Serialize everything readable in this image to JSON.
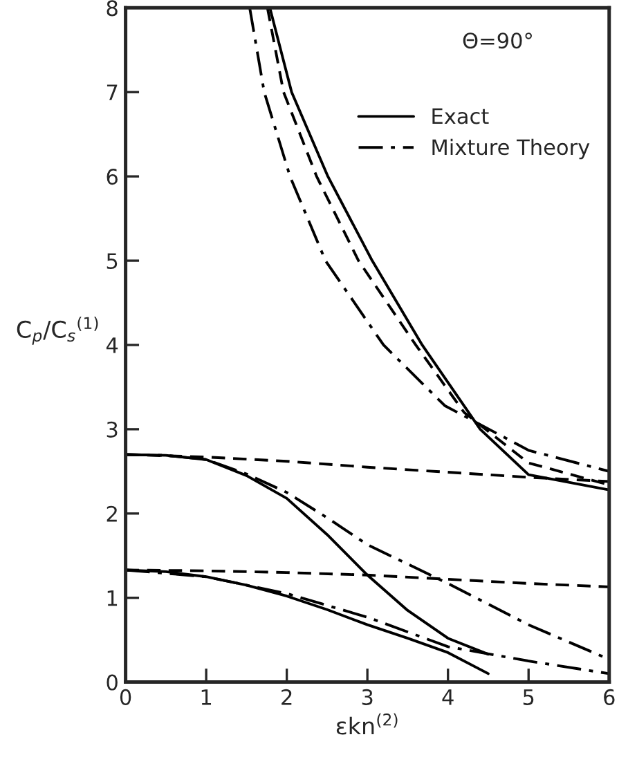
{
  "chart_data": {
    "type": "line",
    "xlabel": "εkn$^{(2)}$",
    "ylabel": "C$_{p}$/C$_{s}$$^{(1)}$",
    "annotations": [
      "Θ=90°"
    ],
    "xlim": [
      0,
      6
    ],
    "ylim": [
      0,
      8
    ],
    "xticks": [
      0,
      1,
      2,
      3,
      4,
      5,
      6
    ],
    "yticks": [
      0,
      1,
      2,
      3,
      4,
      5,
      6,
      7,
      8
    ],
    "grid": false,
    "legend": "top right",
    "marker": "none",
    "series": [
      {
        "name": "Exact",
        "color": "#000000",
        "line_style": "solid",
        "x": [
          1.79,
          2.06,
          2.51,
          3.06,
          3.68,
          4.4,
          5.0,
          6.0
        ],
        "values": [
          8,
          7,
          6,
          5,
          4,
          3,
          2.46,
          2.28
        ]
      },
      {
        "name": "Mixture Theory",
        "color": "#000000",
        "line_style": "dashdot",
        "x": [
          1.54,
          1.72,
          2.04,
          2.48,
          3.2,
          3.96,
          5.0,
          6.0
        ],
        "values": [
          8,
          7,
          6,
          5,
          4,
          3.28,
          2.75,
          2.5
        ]
      },
      {
        "color": "#000000",
        "line_style": "dashed",
        "x": [
          1.76,
          1.96,
          2.37,
          2.89,
          3.6,
          4.2,
          5.0,
          6.0
        ],
        "values": [
          8,
          7,
          6,
          5,
          4,
          3.2,
          2.6,
          2.34
        ]
      },
      {
        "color": "#000000",
        "line_style": "solid",
        "x": [
          0,
          0.5,
          1,
          1.5,
          2,
          2.5,
          3,
          3.5,
          4,
          4.5
        ],
        "values": [
          2.7,
          2.69,
          2.64,
          2.45,
          2.18,
          1.75,
          1.27,
          0.85,
          0.52,
          0.33
        ]
      },
      {
        "color": "#000000",
        "line_style": "dashdot",
        "x": [
          0,
          0.5,
          1,
          1.5,
          2,
          2.5,
          3,
          4,
          5,
          6
        ],
        "values": [
          2.7,
          2.69,
          2.64,
          2.47,
          2.25,
          1.95,
          1.63,
          1.17,
          0.68,
          0.27
        ]
      },
      {
        "color": "#000000",
        "line_style": "dashed",
        "x": [
          0,
          1,
          2,
          3,
          4,
          5,
          6
        ],
        "values": [
          2.7,
          2.67,
          2.62,
          2.55,
          2.49,
          2.43,
          2.38
        ]
      },
      {
        "color": "#000000",
        "line_style": "solid",
        "x": [
          0,
          0.5,
          1,
          1.5,
          2,
          2.5,
          3,
          3.5,
          4,
          4.5
        ],
        "values": [
          1.33,
          1.31,
          1.25,
          1.15,
          1.02,
          0.86,
          0.68,
          0.52,
          0.35,
          0.1
        ]
      },
      {
        "color": "#000000",
        "line_style": "dashdot",
        "x": [
          0,
          1,
          2,
          3,
          4,
          5,
          6
        ],
        "values": [
          1.33,
          1.25,
          1.05,
          0.77,
          0.42,
          0.25,
          0.1
        ]
      },
      {
        "color": "#000000",
        "line_style": "dashed",
        "x": [
          0,
          1,
          2,
          3,
          4,
          5,
          6
        ],
        "values": [
          1.33,
          1.32,
          1.3,
          1.27,
          1.22,
          1.17,
          1.13
        ]
      }
    ]
  }
}
